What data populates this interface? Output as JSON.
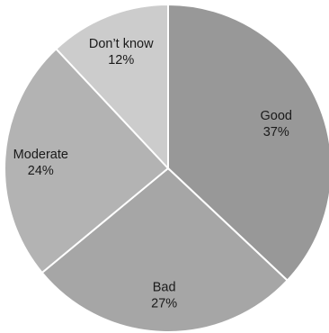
{
  "chart_data": {
    "type": "pie",
    "title": "",
    "slices": [
      {
        "label": "Good",
        "percent_label": "37%",
        "value": 37,
        "color": "#989898"
      },
      {
        "label": "Bad",
        "percent_label": "27%",
        "value": 27,
        "color": "#a6a6a6"
      },
      {
        "label": "Moderate",
        "percent_label": "24%",
        "value": 24,
        "color": "#b3b3b3"
      },
      {
        "label": "Don’t know",
        "percent_label": "12%",
        "value": 12,
        "color": "#cccccc"
      }
    ],
    "start": "12 o'clock",
    "direction": "clockwise"
  }
}
